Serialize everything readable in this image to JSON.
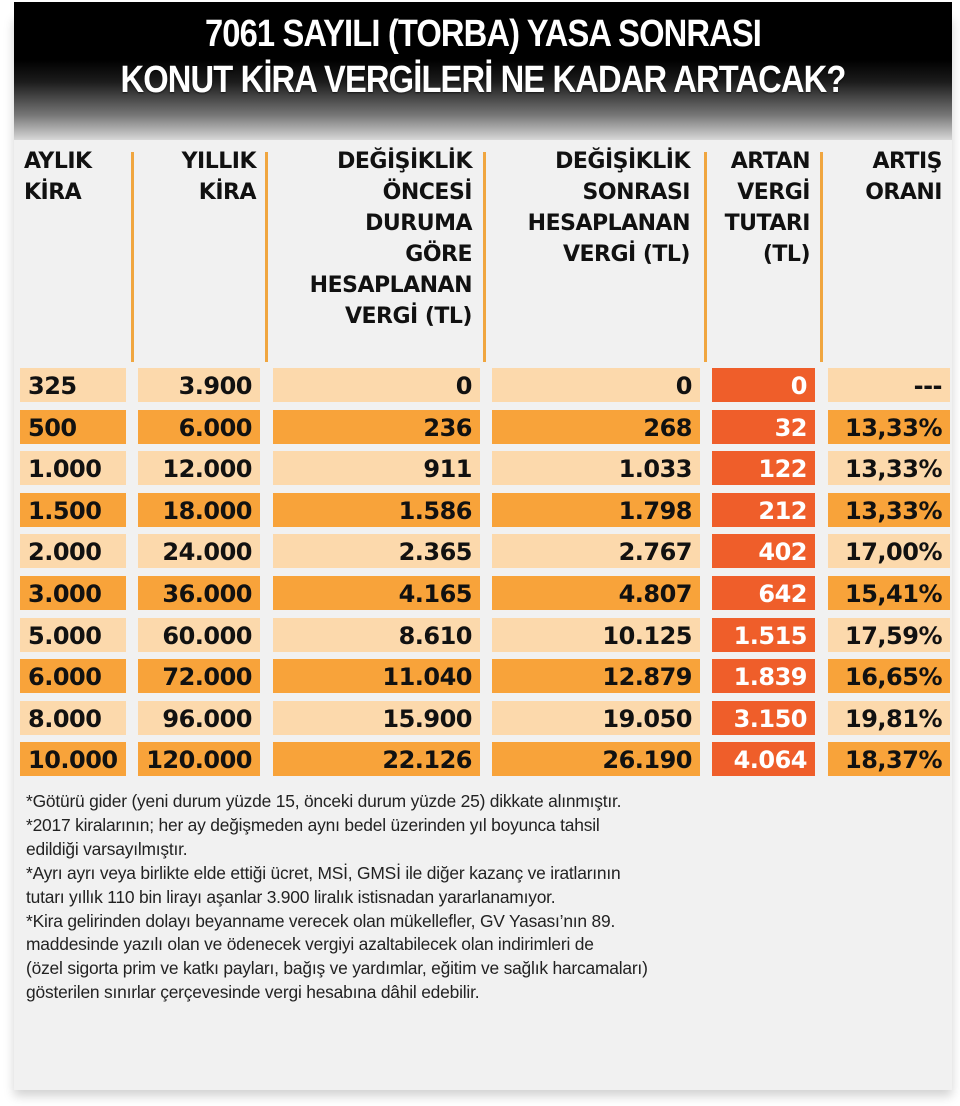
{
  "title": {
    "line1": "7061 SAYILI (TORBA) YASA SONRASI",
    "line2": "KONUT KİRA VERGİLERİ NE KADAR ARTACAK?"
  },
  "columns": [
    {
      "lines": [
        "AYLIK",
        "KİRA"
      ]
    },
    {
      "lines": [
        "YILLIK",
        "KİRA"
      ]
    },
    {
      "lines": [
        "DEĞİŞİKLİK",
        "ÖNCESİ",
        "DURUMA",
        "GÖRE",
        "HESAPLANAN",
        "VERGİ (TL)"
      ]
    },
    {
      "lines": [
        "DEĞİŞİKLİK",
        "SONRASI",
        "HESAPLANAN",
        "VERGİ (TL)"
      ]
    },
    {
      "lines": [
        "ARTAN",
        "VERGİ",
        "TUTARI",
        "(TL)"
      ]
    },
    {
      "lines": [
        "ARTIŞ",
        "ORANI"
      ]
    }
  ],
  "rows": [
    [
      "325",
      "3.900",
      "0",
      "0",
      "0",
      "---"
    ],
    [
      "500",
      "6.000",
      "236",
      "268",
      "32",
      "13,33%"
    ],
    [
      "1.000",
      "12.000",
      "911",
      "1.033",
      "122",
      "13,33%"
    ],
    [
      "1.500",
      "18.000",
      "1.586",
      "1.798",
      "212",
      "13,33%"
    ],
    [
      "2.000",
      "24.000",
      "2.365",
      "2.767",
      "402",
      "17,00%"
    ],
    [
      "3.000",
      "36.000",
      "4.165",
      "4.807",
      "642",
      "15,41%"
    ],
    [
      "5.000",
      "60.000",
      "8.610",
      "10.125",
      "1.515",
      "17,59%"
    ],
    [
      "6.000",
      "72.000",
      "11.040",
      "12.879",
      "1.839",
      "16,65%"
    ],
    [
      "8.000",
      "96.000",
      "15.900",
      "19.050",
      "3.150",
      "19,81%"
    ],
    [
      "10.000",
      "120.000",
      "22.126",
      "26.190",
      "4.064",
      "18,37%"
    ]
  ],
  "notes": [
    "*Götürü gider (yeni durum yüzde 15, önceki durum yüzde 25) dikkate alınmıştır.",
    "*2017 kiralarının; her ay değişmeden aynı bedel üzerinden yıl boyunca tahsil",
    "edildiği varsayılmıştır.",
    "*Ayrı ayrı veya birlikte elde ettiği ücret, MSİ, GMSİ ile diğer kazanç ve iratlarının",
    "tutarı yıllık 110 bin lirayı aşanlar 3.900 liralık istisnadan yararlanamıyor.",
    "*Kira gelirinden dolayı beyanname verecek olan mükellefler, GV Yasası’nın 89.",
    "maddesinde yazılı olan ve ödenecek vergiyi azaltabilecek olan indirimleri de",
    "(özel sigorta prim ve katkı payları, bağış ve yardımlar,  eğitim ve sağlık harcamaları)",
    "gösterilen sınırlar çerçevesinde vergi hesabına dâhil edebilir."
  ],
  "colors": {
    "row_light": "#fcd9ac",
    "row_dark": "#f8a33a",
    "highlight_red": "#ef5e2a",
    "separator": "#f0a640",
    "header_bg": "#000000"
  },
  "chart_data": {
    "type": "table",
    "title": "7061 SAYILI (TORBA) YASA SONRASI KONUT KİRA VERGİLERİ NE KADAR ARTACAK?",
    "columns": [
      "AYLIK KİRA",
      "YILLIK KİRA",
      "DEĞİŞİKLİK ÖNCESİ DURUMA GÖRE HESAPLANAN VERGİ (TL)",
      "DEĞİŞİKLİK SONRASI HESAPLANAN VERGİ (TL)",
      "ARTAN VERGİ TUTARI (TL)",
      "ARTIŞ ORANI"
    ],
    "monthly_rent": [
      325,
      500,
      1000,
      1500,
      2000,
      3000,
      5000,
      6000,
      8000,
      10000
    ],
    "annual_rent": [
      3900,
      6000,
      12000,
      18000,
      24000,
      36000,
      60000,
      72000,
      96000,
      120000
    ],
    "tax_before": [
      0,
      236,
      911,
      1586,
      2365,
      4165,
      8610,
      11040,
      15900,
      22126
    ],
    "tax_after": [
      0,
      268,
      1033,
      1798,
      2767,
      4807,
      10125,
      12879,
      19050,
      26190
    ],
    "tax_increase": [
      0,
      32,
      122,
      212,
      402,
      642,
      1515,
      1839,
      3150,
      4064
    ],
    "increase_rate_pct": [
      null,
      13.33,
      13.33,
      13.33,
      17.0,
      15.41,
      17.59,
      16.65,
      19.81,
      18.37
    ]
  }
}
